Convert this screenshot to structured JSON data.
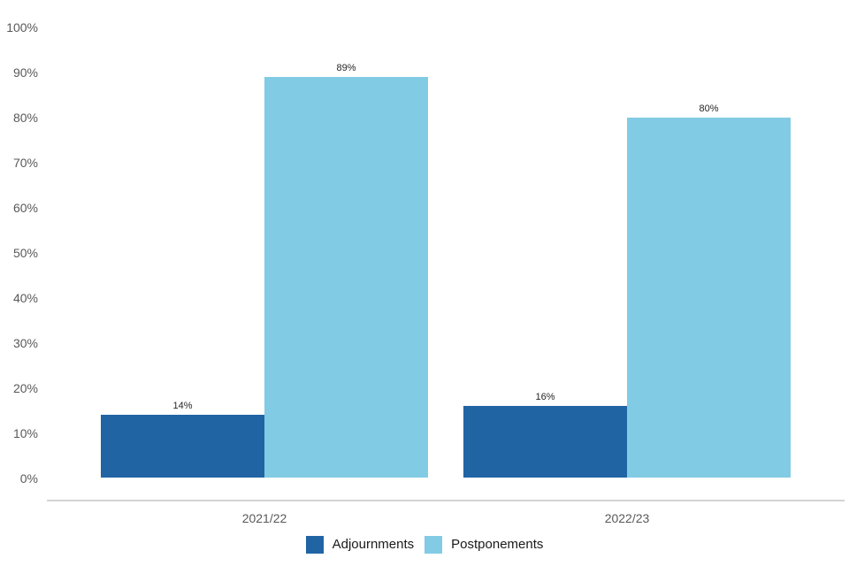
{
  "chart_data": {
    "type": "bar",
    "title": "",
    "xlabel": "",
    "ylabel": "",
    "categories": [
      "2021/22",
      "2022/23"
    ],
    "series": [
      {
        "name": "Adjournments",
        "color": "#2064A4",
        "values": [
          14,
          16
        ]
      },
      {
        "name": "Postponements",
        "color": "#82CBE4",
        "values": [
          89,
          80
        ]
      }
    ],
    "value_label_suffix": "%",
    "ylim": [
      0,
      100
    ],
    "ytick_labels": [
      "100%",
      "90%",
      "80%",
      "70%",
      "60%",
      "50%",
      "40%",
      "30%",
      "20%",
      "10%",
      "0%"
    ],
    "grid": false,
    "legend_position": "bottom"
  },
  "colors": {
    "background": "#ffffff",
    "axis_line": "#d4d4d4",
    "tick_text": "#595959",
    "value_text": "#262626",
    "legend_text": "#1a1a1a"
  }
}
